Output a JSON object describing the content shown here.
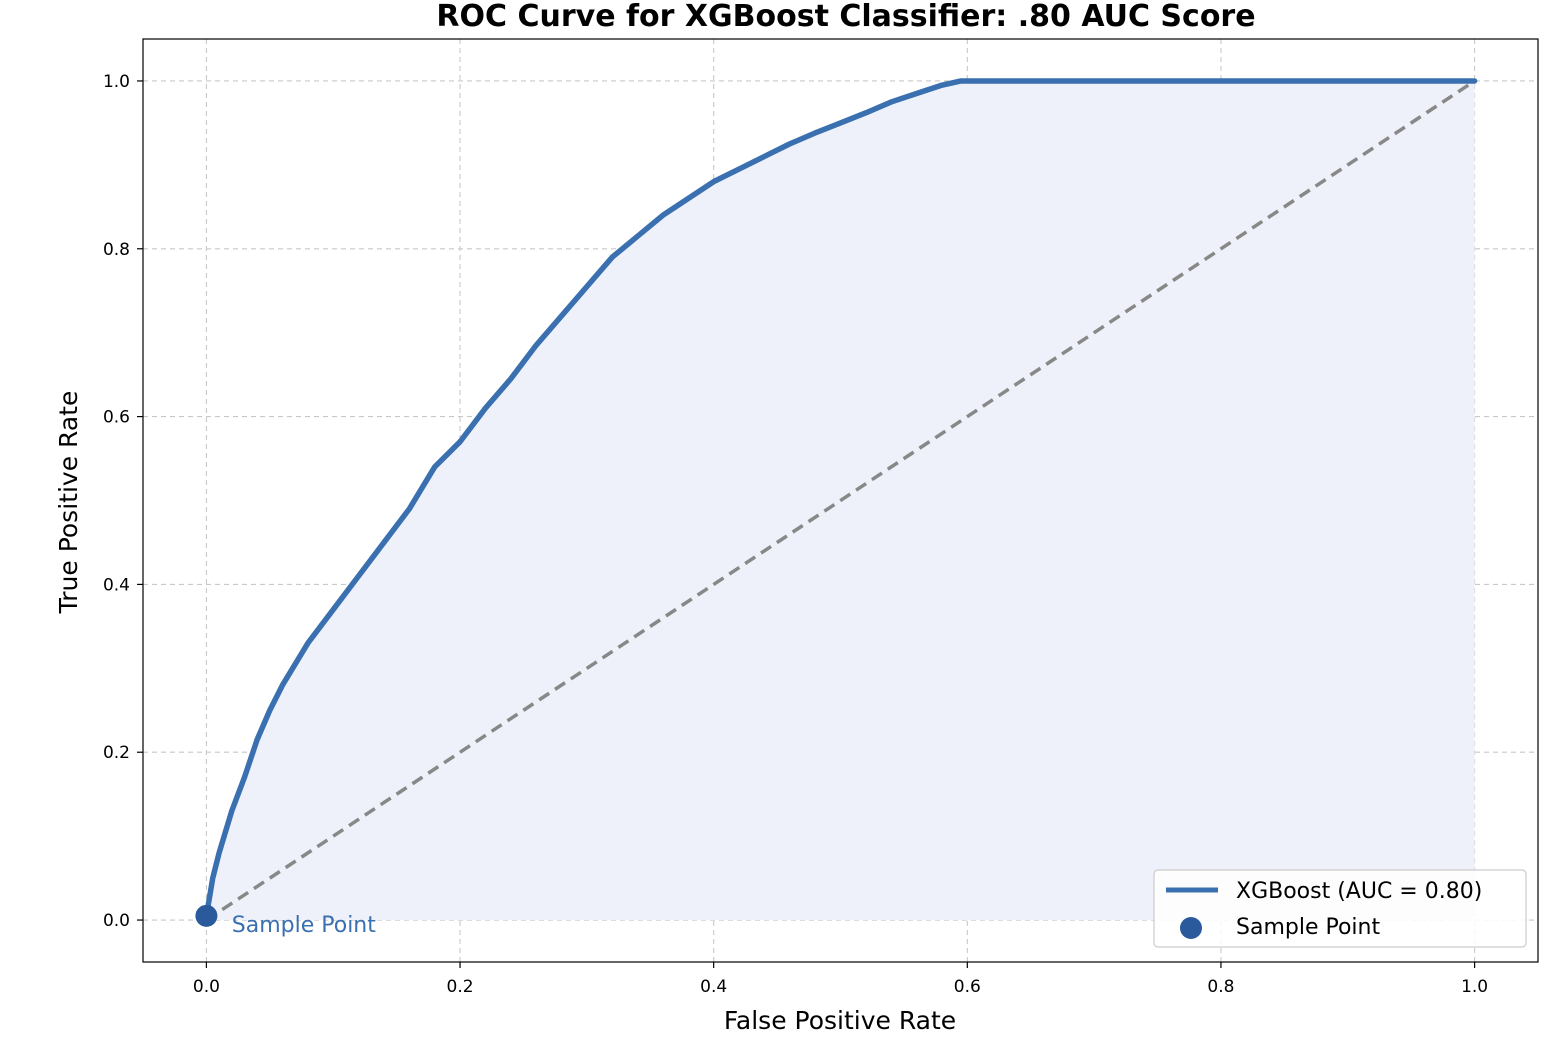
{
  "chart_data": {
    "type": "line",
    "title": "ROC Curve for XGBoost Classifier: .80 AUC Score",
    "xlabel": "False Positive Rate",
    "ylabel": "True Positive Rate",
    "xlim": [
      -0.05,
      1.05
    ],
    "ylim": [
      -0.05,
      1.05
    ],
    "xticks": [
      0.0,
      0.2,
      0.4,
      0.6,
      0.8,
      1.0
    ],
    "xtick_labels": [
      "0.0",
      "0.2",
      "0.4",
      "0.6",
      "0.8",
      "1.0"
    ],
    "yticks": [
      0.0,
      0.2,
      0.4,
      0.6,
      0.8,
      1.0
    ],
    "ytick_labels": [
      "0.0",
      "0.2",
      "0.4",
      "0.6",
      "0.8",
      "1.0"
    ],
    "grid": true,
    "legend_position": "lower-right",
    "series": [
      {
        "name": "XGBoost (AUC = 0.80)",
        "color": "#3a70b0",
        "fill_color": "#eef1f9",
        "x": [
          0.0,
          0.005,
          0.01,
          0.02,
          0.03,
          0.04,
          0.05,
          0.06,
          0.08,
          0.1,
          0.12,
          0.14,
          0.16,
          0.18,
          0.2,
          0.22,
          0.24,
          0.26,
          0.28,
          0.3,
          0.32,
          0.34,
          0.36,
          0.38,
          0.4,
          0.42,
          0.44,
          0.46,
          0.48,
          0.5,
          0.52,
          0.54,
          0.56,
          0.58,
          0.595,
          0.6,
          0.7,
          0.8,
          0.9,
          1.0
        ],
        "y": [
          0.005,
          0.05,
          0.08,
          0.13,
          0.17,
          0.215,
          0.25,
          0.28,
          0.33,
          0.37,
          0.41,
          0.45,
          0.49,
          0.54,
          0.57,
          0.61,
          0.645,
          0.685,
          0.72,
          0.755,
          0.79,
          0.815,
          0.84,
          0.86,
          0.88,
          0.895,
          0.91,
          0.925,
          0.938,
          0.95,
          0.962,
          0.975,
          0.985,
          0.995,
          1.0,
          1.0,
          1.0,
          1.0,
          1.0,
          1.0
        ]
      },
      {
        "name": "",
        "style": "dashed",
        "color": "#888888",
        "x": [
          0.0,
          1.0
        ],
        "y": [
          0.0,
          1.0
        ]
      }
    ],
    "points": [
      {
        "name": "Sample Point",
        "x": 0.0,
        "y": 0.005,
        "color": "#2a5a9c"
      }
    ],
    "annotations": [
      {
        "text": "Sample Point",
        "x": 0.02,
        "y": -0.005,
        "color": "#3a70b0"
      }
    ]
  }
}
